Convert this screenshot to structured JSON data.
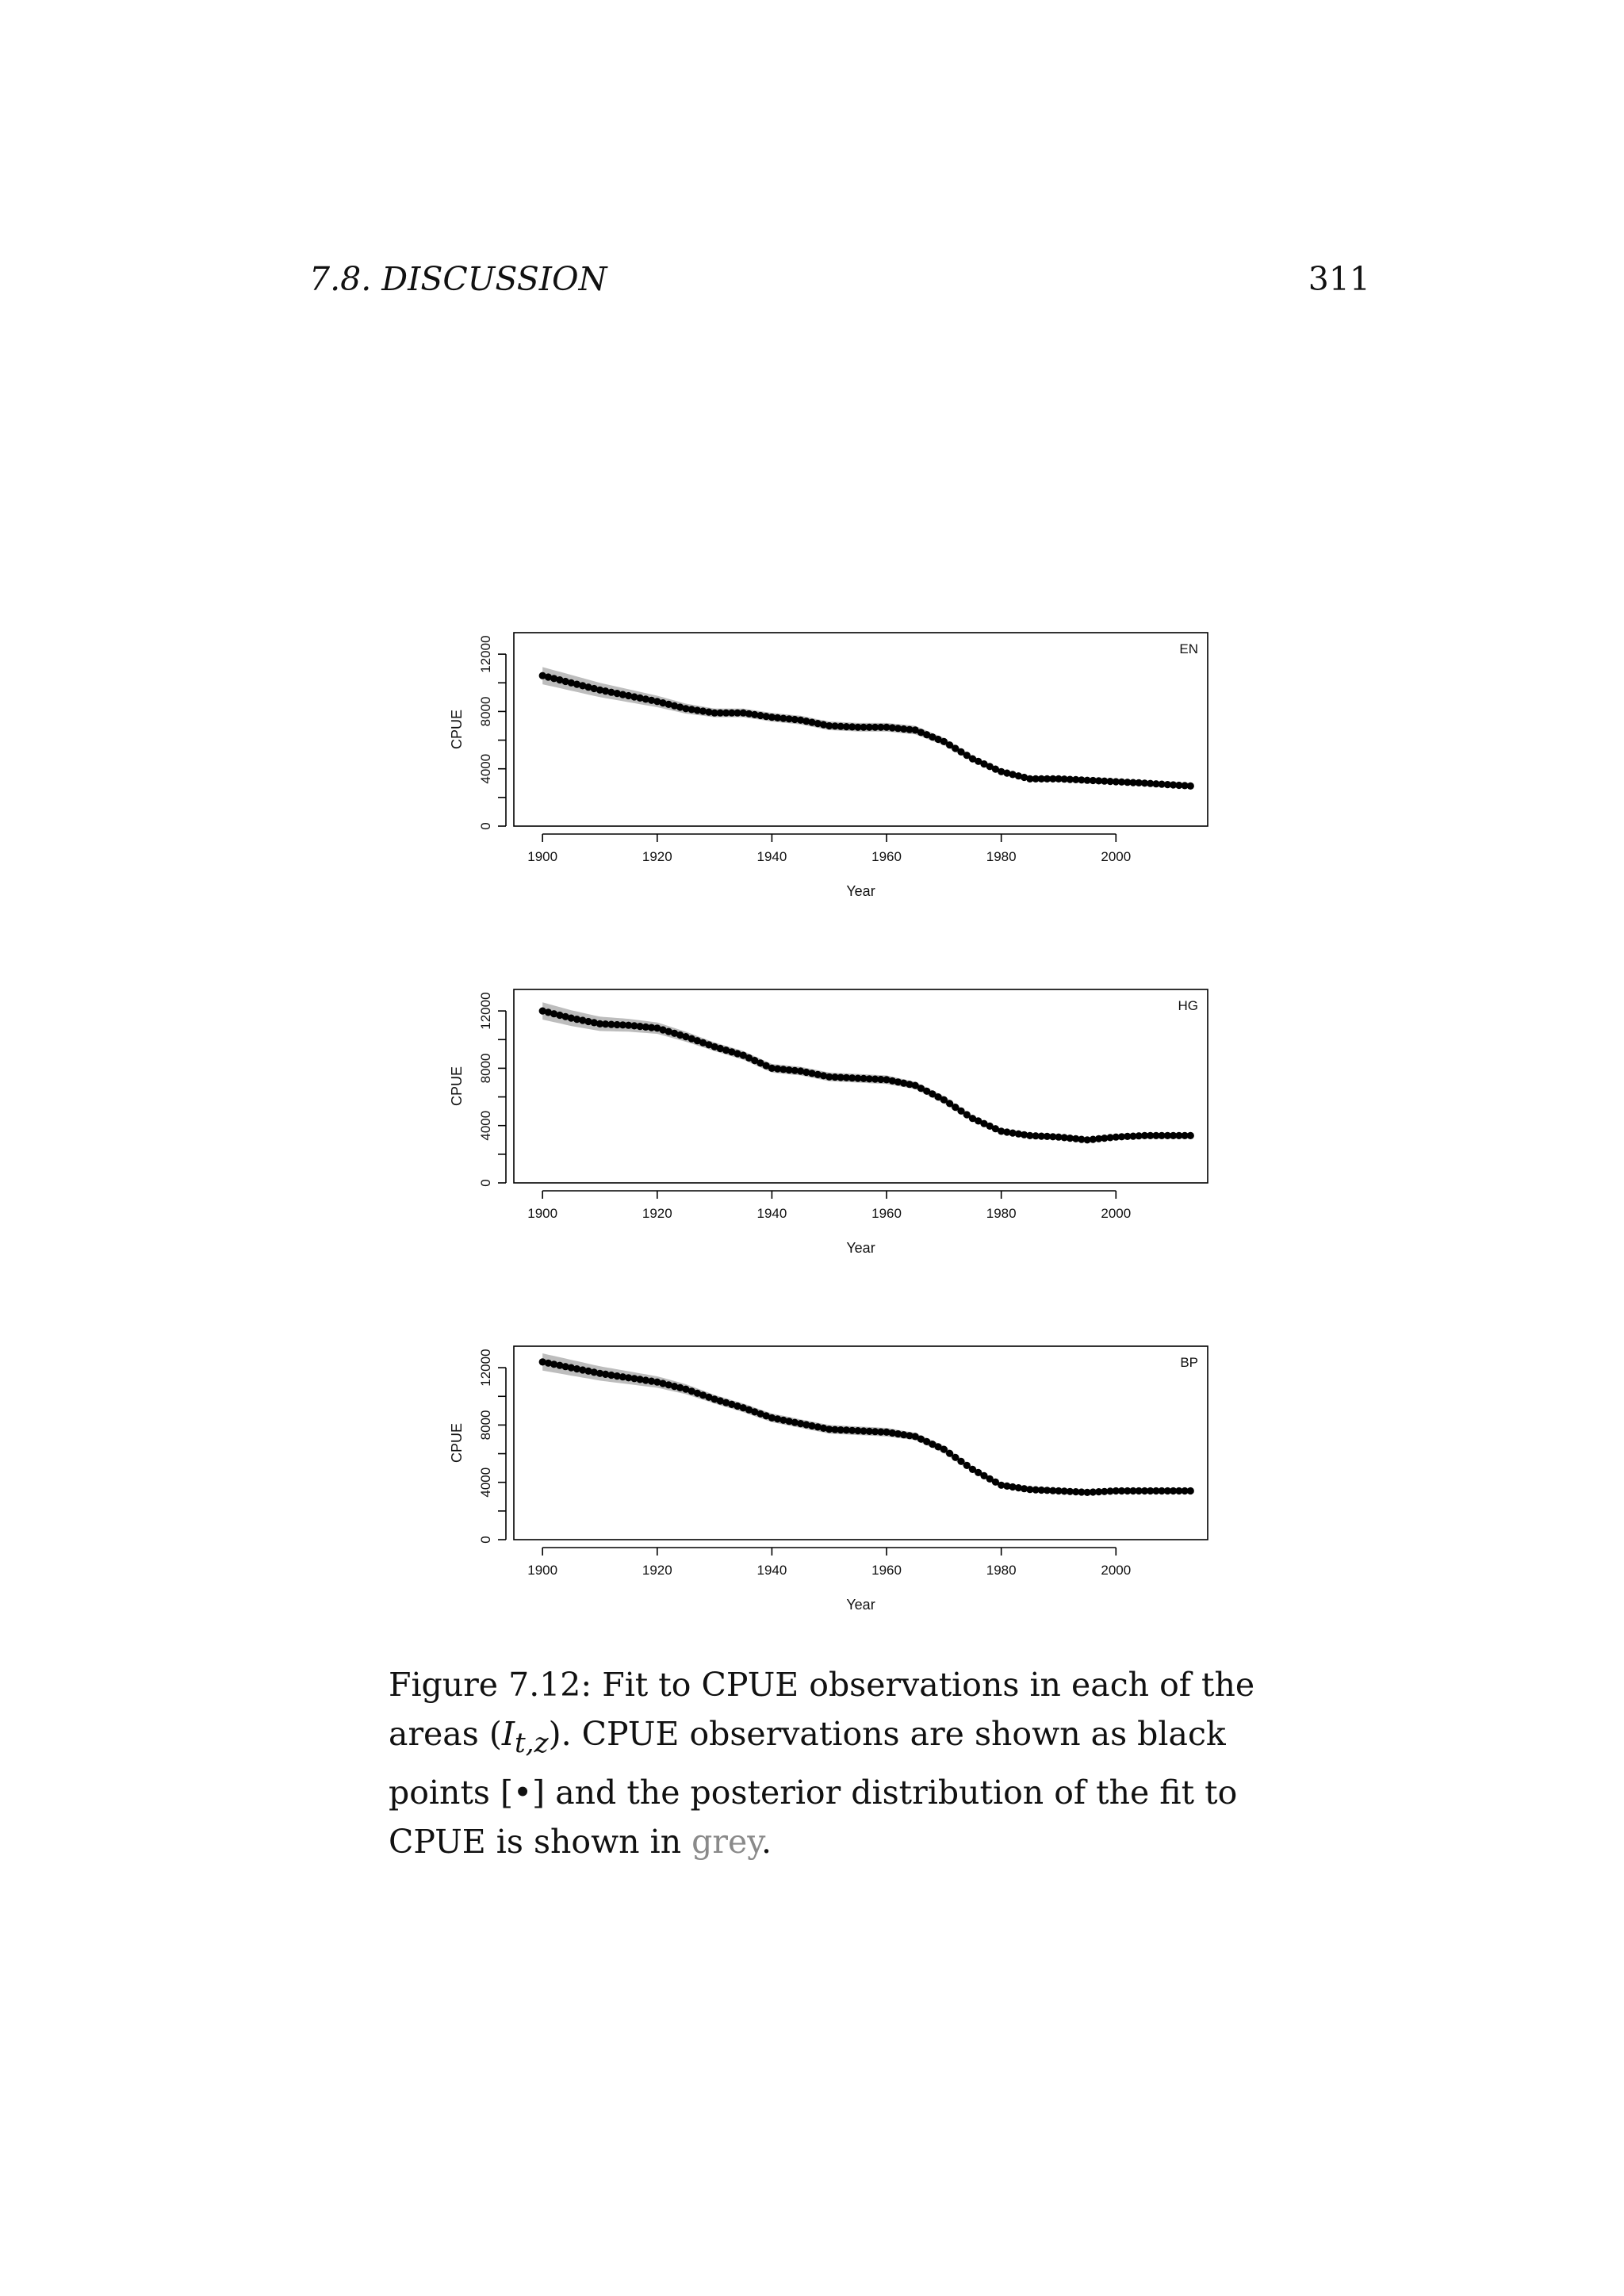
{
  "header": {
    "section": "7.8.  DISCUSSION",
    "page_number": "311"
  },
  "caption": {
    "part1": "Figure 7.12: Fit to CPUE observations in each of the areas (",
    "symbol": "I",
    "subscript": "t,z",
    "part2": "). CPUE observations are shown as black points [•] and the posterior distribution of the fit to CPUE is shown in ",
    "grey_word": "grey",
    "part3": "."
  },
  "colors": {
    "points": "#000000",
    "band": "#bdbdbd",
    "axis": "#000000"
  },
  "chart_data": [
    {
      "type": "scatter",
      "panel_label": "EN",
      "xlabel": "Year",
      "ylabel": "CPUE",
      "xlim": [
        1895,
        2016
      ],
      "ylim": [
        0,
        13500
      ],
      "xticks": [
        1900,
        1920,
        1940,
        1960,
        1980,
        2000
      ],
      "yticks": [
        0,
        4000,
        8000,
        12000
      ],
      "x": [
        1900,
        1910,
        1920,
        1925,
        1930,
        1935,
        1940,
        1945,
        1950,
        1955,
        1960,
        1965,
        1970,
        1975,
        1980,
        1985,
        1990,
        1995,
        2000,
        2005,
        2013
      ],
      "y": [
        10500,
        9500,
        8700,
        8200,
        7900,
        7900,
        7600,
        7400,
        7000,
        6900,
        6900,
        6700,
        5900,
        4700,
        3800,
        3300,
        3300,
        3200,
        3100,
        3000,
        2800
      ],
      "band_halfwidth": [
        600,
        500,
        400,
        350,
        300,
        300,
        300,
        300,
        300,
        300,
        300,
        300,
        250,
        200,
        150,
        150,
        120,
        120,
        100,
        100,
        100
      ]
    },
    {
      "type": "scatter",
      "panel_label": "HG",
      "xlabel": "Year",
      "ylabel": "CPUE",
      "xlim": [
        1895,
        2016
      ],
      "ylim": [
        0,
        13500
      ],
      "xticks": [
        1900,
        1920,
        1940,
        1960,
        1980,
        2000
      ],
      "yticks": [
        0,
        4000,
        8000,
        12000
      ],
      "x": [
        1900,
        1905,
        1910,
        1915,
        1920,
        1925,
        1930,
        1935,
        1940,
        1945,
        1950,
        1955,
        1960,
        1965,
        1970,
        1975,
        1980,
        1985,
        1990,
        1995,
        2000,
        2005,
        2013
      ],
      "y": [
        12000,
        11500,
        11100,
        11000,
        10800,
        10200,
        9500,
        8900,
        8000,
        7800,
        7400,
        7300,
        7200,
        6800,
        5800,
        4500,
        3600,
        3300,
        3200,
        3000,
        3200,
        3300,
        3300
      ],
      "band_halfwidth": [
        600,
        550,
        500,
        450,
        400,
        350,
        300,
        300,
        300,
        300,
        300,
        300,
        300,
        250,
        250,
        200,
        150,
        150,
        120,
        120,
        100,
        100,
        100
      ]
    },
    {
      "type": "scatter",
      "panel_label": "BP",
      "xlabel": "Year",
      "ylabel": "CPUE",
      "xlim": [
        1895,
        2016
      ],
      "ylim": [
        0,
        13500
      ],
      "xticks": [
        1900,
        1920,
        1940,
        1960,
        1980,
        2000
      ],
      "yticks": [
        0,
        4000,
        8000,
        12000
      ],
      "x": [
        1900,
        1905,
        1910,
        1915,
        1920,
        1925,
        1930,
        1935,
        1940,
        1945,
        1950,
        1955,
        1960,
        1965,
        1970,
        1975,
        1980,
        1985,
        1990,
        1995,
        2000,
        2005,
        2013
      ],
      "y": [
        12400,
        12000,
        11600,
        11300,
        11000,
        10500,
        9800,
        9200,
        8500,
        8100,
        7700,
        7600,
        7500,
        7200,
        6300,
        4900,
        3800,
        3500,
        3400,
        3300,
        3400,
        3400,
        3400
      ],
      "band_halfwidth": [
        600,
        550,
        500,
        450,
        400,
        350,
        300,
        300,
        300,
        300,
        300,
        300,
        300,
        250,
        250,
        200,
        150,
        150,
        120,
        120,
        100,
        100,
        100
      ]
    }
  ]
}
